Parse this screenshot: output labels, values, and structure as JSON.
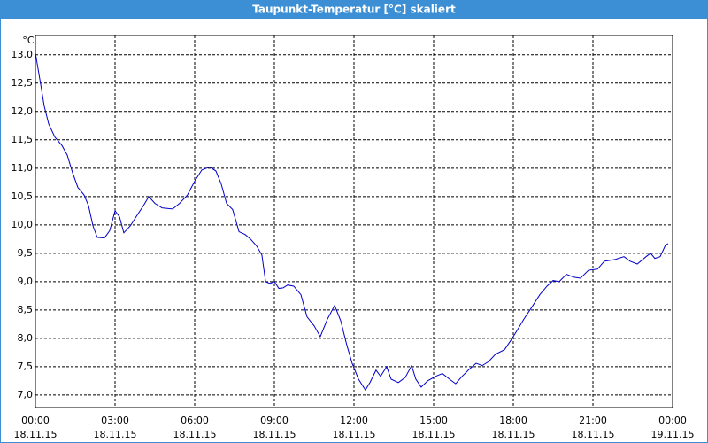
{
  "chart_data": {
    "type": "line",
    "title": "Taupunkt-Temperatur [°C] skaliert",
    "y_unit": "°C",
    "color": "#0000c8",
    "grid": true,
    "x": [
      0,
      0.17,
      0.33,
      0.5,
      0.73,
      1,
      1.2,
      1.4,
      1.6,
      1.83,
      2,
      2.17,
      2.33,
      2.6,
      2.8,
      3,
      3.17,
      3.33,
      3.57,
      3.83,
      4.07,
      4.27,
      4.5,
      4.77,
      5.17,
      5.43,
      5.73,
      6,
      6.27,
      6.57,
      6.8,
      7,
      7.2,
      7.43,
      7.67,
      7.9,
      8.1,
      8.33,
      8.53,
      8.67,
      8.83,
      9,
      9.17,
      9.33,
      9.5,
      9.73,
      10,
      10.23,
      10.5,
      10.73,
      11,
      11.27,
      11.5,
      11.73,
      11.93,
      12.17,
      12.43,
      12.6,
      12.83,
      13,
      13.23,
      13.4,
      13.67,
      13.93,
      14.17,
      14.33,
      14.53,
      14.77,
      15.07,
      15.33,
      15.6,
      15.83,
      16.07,
      16.33,
      16.6,
      16.83,
      17.07,
      17.33,
      17.67,
      17.93,
      18.17,
      18.4,
      18.67,
      19,
      19.27,
      19.5,
      19.73,
      20,
      20.27,
      20.53,
      20.83,
      21.17,
      21.43,
      21.83,
      22.17,
      22.4,
      22.67,
      23,
      23.17,
      23.33,
      23.53,
      23.73,
      23.83
    ],
    "values": [
      13.03,
      12.56,
      12.1,
      11.78,
      11.55,
      11.4,
      11.23,
      10.92,
      10.66,
      10.53,
      10.34,
      9.98,
      9.78,
      9.77,
      9.9,
      10.25,
      10.14,
      9.86,
      9.98,
      10.17,
      10.34,
      10.5,
      10.38,
      10.3,
      10.28,
      10.38,
      10.53,
      10.77,
      10.97,
      11.02,
      10.95,
      10.72,
      10.38,
      10.27,
      9.88,
      9.83,
      9.75,
      9.63,
      9.47,
      9.0,
      8.97,
      9.0,
      8.88,
      8.89,
      8.94,
      8.92,
      8.77,
      8.38,
      8.22,
      8.03,
      8.34,
      8.58,
      8.31,
      7.88,
      7.56,
      7.28,
      7.09,
      7.22,
      7.44,
      7.33,
      7.5,
      7.28,
      7.22,
      7.31,
      7.52,
      7.28,
      7.14,
      7.25,
      7.33,
      7.38,
      7.28,
      7.2,
      7.33,
      7.45,
      7.56,
      7.52,
      7.59,
      7.72,
      7.8,
      7.98,
      8.16,
      8.34,
      8.53,
      8.77,
      8.92,
      9.02,
      9.0,
      9.13,
      9.08,
      9.06,
      9.2,
      9.22,
      9.36,
      9.39,
      9.44,
      9.36,
      9.31,
      9.44,
      9.5,
      9.41,
      9.44,
      9.64,
      9.67
    ],
    "xlim": [
      0,
      24
    ],
    "xticks": [
      {
        "value": 0,
        "label": "00:00"
      },
      {
        "value": 3,
        "label": "03:00"
      },
      {
        "value": 6,
        "label": "06:00"
      },
      {
        "value": 9,
        "label": "09:00"
      },
      {
        "value": 12,
        "label": "12:00"
      },
      {
        "value": 15,
        "label": "15:00"
      },
      {
        "value": 18,
        "label": "18:00"
      },
      {
        "value": 21,
        "label": "21:00"
      },
      {
        "value": 24,
        "label": "00:00"
      }
    ],
    "xtick_dates": [
      "18.11.15",
      "18.11.15",
      "18.11.15",
      "18.11.15",
      "18.11.15",
      "18.11.15",
      "18.11.15",
      "18.11.15",
      "19.11.15"
    ],
    "ylim": [
      6.78,
      13.34
    ],
    "yticks": [
      {
        "value": 7,
        "label": "7,0"
      },
      {
        "value": 7.5,
        "label": "7,5"
      },
      {
        "value": 8,
        "label": "8,0"
      },
      {
        "value": 8.5,
        "label": "8,5"
      },
      {
        "value": 9,
        "label": "9,0"
      },
      {
        "value": 9.5,
        "label": "9,5"
      },
      {
        "value": 10,
        "label": "10,0"
      },
      {
        "value": 10.5,
        "label": "10,5"
      },
      {
        "value": 11,
        "label": "11,0"
      },
      {
        "value": 11.5,
        "label": "11,5"
      },
      {
        "value": 12,
        "label": "12,0"
      },
      {
        "value": 12.5,
        "label": "12,5"
      },
      {
        "value": 13,
        "label": "13,0"
      }
    ]
  }
}
